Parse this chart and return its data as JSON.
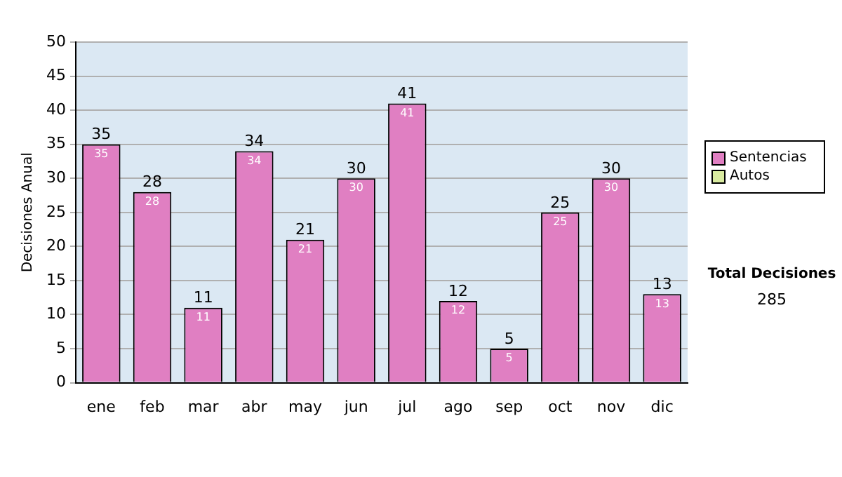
{
  "chart_data": {
    "type": "bar",
    "ylabel": "Decisiones Anual",
    "categories": [
      "ene",
      "feb",
      "mar",
      "abr",
      "may",
      "jun",
      "jul",
      "ago",
      "sep",
      "oct",
      "nov",
      "dic"
    ],
    "series": [
      {
        "name": "Sentencias",
        "color": "#e07fc2",
        "values": [
          35,
          28,
          11,
          34,
          21,
          30,
          41,
          12,
          5,
          25,
          30,
          13
        ],
        "value_labels": [
          "35",
          "28",
          "11",
          "34",
          "21",
          "30",
          "41",
          "12",
          "5",
          "25",
          "30",
          "13"
        ]
      },
      {
        "name": "Autos",
        "color": "#d9eba0",
        "values": [
          0,
          0,
          0,
          0,
          0,
          0,
          0,
          0,
          0,
          0,
          0,
          0
        ],
        "value_labels": [
          null,
          null,
          null,
          null,
          null,
          null,
          null,
          null,
          null,
          null,
          null,
          null
        ]
      }
    ],
    "stacked": true,
    "totals": [
      "35",
      "28",
      "11",
      "34",
      "21",
      "30",
      "41",
      "12",
      "5",
      "25",
      "30",
      "13"
    ],
    "ylim": [
      0,
      50
    ],
    "yticks": [
      0,
      5,
      10,
      15,
      20,
      25,
      30,
      35,
      40,
      45,
      50
    ],
    "grid": "y",
    "legend": "right",
    "annotations": [
      "Total Decisiones",
      "285"
    ]
  }
}
